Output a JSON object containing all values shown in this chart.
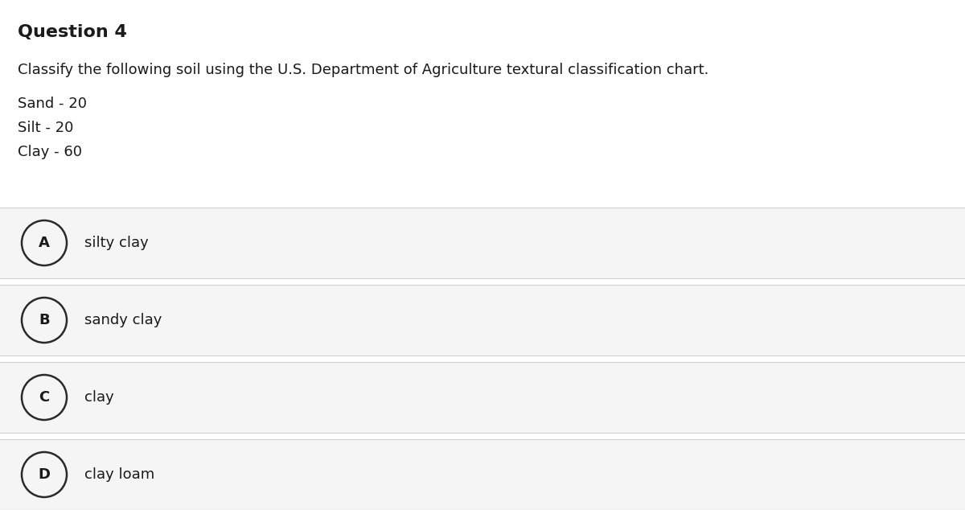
{
  "title": "Question 4",
  "question_text": "Classify the following soil using the U.S. Department of Agriculture textural classification chart.",
  "soil_lines": [
    "Sand - 20",
    "Silt - 20",
    "Clay - 60"
  ],
  "options": [
    {
      "label": "A",
      "text": "silty clay"
    },
    {
      "label": "B",
      "text": "sandy clay"
    },
    {
      "label": "C",
      "text": "clay"
    },
    {
      "label": "D",
      "text": "clay loam"
    }
  ],
  "bg_color": "#ffffff",
  "option_bg_color": "#f5f5f5",
  "option_border_color": "#d0d0d0",
  "title_fontsize": 16,
  "body_fontsize": 13,
  "option_fontsize": 13,
  "text_color": "#1a1a1a",
  "circle_edge_color": "#2a2a2a",
  "circle_face_color": "#f5f5f5",
  "circle_linewidth": 1.8
}
